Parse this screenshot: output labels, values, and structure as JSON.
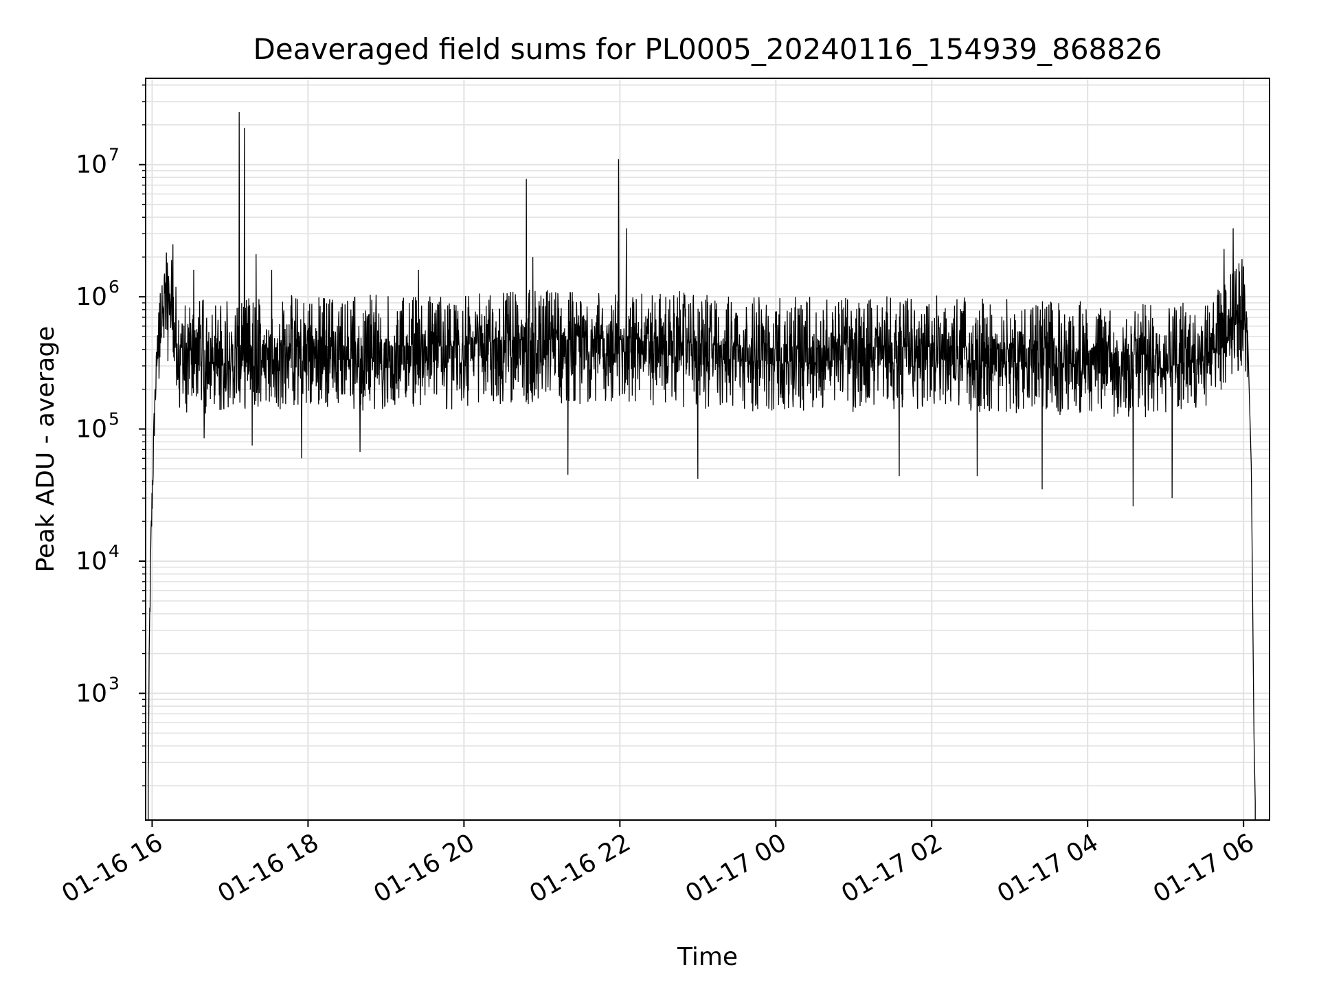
{
  "chart_data": {
    "type": "line",
    "title": "Deaveraged field sums for PL0005_20240116_154939_868826",
    "xlabel": "Time",
    "ylabel": "Peak ADU - average",
    "yscale": "log",
    "ylim": [
      110,
      45000000
    ],
    "xlim": [
      "2024-01-16 15:55",
      "2024-01-17 06:20"
    ],
    "grid": true,
    "x_tick_labels": [
      "01-16 16",
      "01-16 18",
      "01-16 20",
      "01-16 22",
      "01-17 00",
      "01-17 02",
      "01-17 04",
      "01-17 06"
    ],
    "x_ticks": [
      "2024-01-16 16:00",
      "2024-01-16 18:00",
      "2024-01-16 20:00",
      "2024-01-16 22:00",
      "2024-01-17 00:00",
      "2024-01-17 02:00",
      "2024-01-17 04:00",
      "2024-01-17 06:00"
    ],
    "y_tick_labels": [
      {
        "base": "10",
        "exp": "3",
        "value": 1000
      },
      {
        "base": "10",
        "exp": "4",
        "value": 10000
      },
      {
        "base": "10",
        "exp": "5",
        "value": 100000
      },
      {
        "base": "10",
        "exp": "6",
        "value": 1000000
      },
      {
        "base": "10",
        "exp": "7",
        "value": 10000000
      }
    ],
    "series_color": "#000000",
    "baseline_profile": [
      [
        "2024-01-16 15:57",
        200
      ],
      [
        "2024-01-16 15:58",
        3000
      ],
      [
        "2024-01-16 15:59",
        12000
      ],
      [
        "2024-01-16 16:00",
        30000
      ],
      [
        "2024-01-16 16:02",
        150000
      ],
      [
        "2024-01-16 16:05",
        600000
      ],
      [
        "2024-01-16 16:08",
        1000000
      ],
      [
        "2024-01-16 16:12",
        900000
      ],
      [
        "2024-01-16 16:16",
        650000
      ],
      [
        "2024-01-16 16:20",
        350000
      ],
      [
        "2024-01-16 18:00",
        380000
      ],
      [
        "2024-01-16 20:00",
        380000
      ],
      [
        "2024-01-16 20:30",
        420000
      ],
      [
        "2024-01-16 22:00",
        430000
      ],
      [
        "2024-01-17 00:00",
        360000
      ],
      [
        "2024-01-17 02:00",
        380000
      ],
      [
        "2024-01-17 04:00",
        340000
      ],
      [
        "2024-01-17 05:00",
        320000
      ],
      [
        "2024-01-17 05:30",
        400000
      ],
      [
        "2024-01-17 05:55",
        700000
      ],
      [
        "2024-01-17 06:00",
        850000
      ],
      [
        "2024-01-17 06:03",
        600000
      ],
      [
        "2024-01-17 06:06",
        50000
      ],
      [
        "2024-01-17 06:08",
        500
      ],
      [
        "2024-01-17 06:09",
        150
      ]
    ],
    "spikes": [
      [
        "2024-01-16 16:12",
        1400000
      ],
      [
        "2024-01-16 16:15",
        1900000
      ],
      [
        "2024-01-16 16:16",
        2500000
      ],
      [
        "2024-01-16 16:32",
        1600000
      ],
      [
        "2024-01-16 17:07",
        25000000
      ],
      [
        "2024-01-16 17:11",
        19000000
      ],
      [
        "2024-01-16 17:20",
        2100000
      ],
      [
        "2024-01-16 17:32",
        1600000
      ],
      [
        "2024-01-16 19:25",
        1600000
      ],
      [
        "2024-01-16 20:48",
        7800000
      ],
      [
        "2024-01-16 20:53",
        2000000
      ],
      [
        "2024-01-16 21:59",
        11000000
      ],
      [
        "2024-01-16 22:05",
        3300000
      ],
      [
        "2024-01-16 23:00",
        1300000
      ],
      [
        "2024-01-17 05:45",
        2300000
      ],
      [
        "2024-01-17 05:52",
        3300000
      ],
      [
        "2024-01-17 06:00",
        1700000
      ]
    ],
    "dips": [
      [
        "2024-01-16 16:20",
        250000
      ],
      [
        "2024-01-16 16:40",
        85000
      ],
      [
        "2024-01-16 17:17",
        75000
      ],
      [
        "2024-01-16 17:55",
        60000
      ],
      [
        "2024-01-16 18:40",
        67000
      ],
      [
        "2024-01-16 21:20",
        45000
      ],
      [
        "2024-01-16 23:00",
        42000
      ],
      [
        "2024-01-17 01:35",
        44000
      ],
      [
        "2024-01-17 02:35",
        44000
      ],
      [
        "2024-01-17 03:25",
        35000
      ],
      [
        "2024-01-17 04:35",
        26000
      ],
      [
        "2024-01-17 05:05",
        30000
      ]
    ]
  }
}
